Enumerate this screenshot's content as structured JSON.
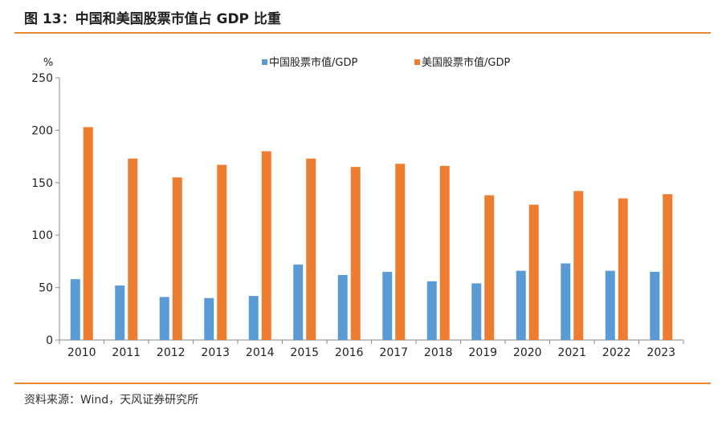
{
  "figure": {
    "title": "图 13：中国和美国股票市值占 GDP 比重",
    "source": "资料来源：Wind，天风证券研究所"
  },
  "chart_data": {
    "type": "bar",
    "title": "",
    "xlabel": "",
    "ylabel": "%",
    "ylim": [
      0,
      250
    ],
    "yticks": [
      0,
      50,
      100,
      150,
      200,
      250
    ],
    "grid": false,
    "legend_position": "top-center",
    "categories": [
      "2010",
      "2011",
      "2012",
      "2013",
      "2014",
      "2015",
      "2016",
      "2017",
      "2018",
      "2019",
      "2020",
      "2021",
      "2022",
      "2023"
    ],
    "series": [
      {
        "name": "中国股票市值/GDP",
        "color": "#5b9bd5",
        "values": [
          58,
          52,
          41,
          40,
          42,
          72,
          62,
          65,
          56,
          54,
          66,
          73,
          66,
          65
        ]
      },
      {
        "name": "美国股票市值/GDP",
        "color": "#ed7d31",
        "values": [
          203,
          173,
          155,
          167,
          180,
          173,
          165,
          168,
          166,
          138,
          129,
          142,
          135,
          139
        ]
      }
    ]
  }
}
